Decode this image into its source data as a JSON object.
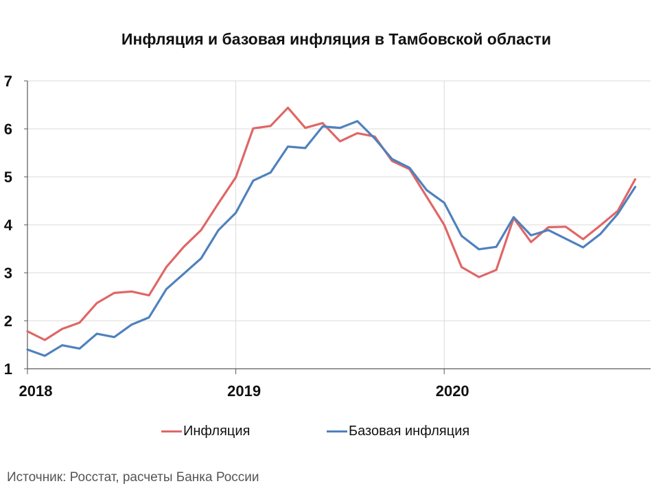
{
  "chart_data": {
    "type": "line",
    "title": "Инфляция и базовая инфляция в Тамбовской области",
    "xlabel": "",
    "ylabel": "",
    "ylim": [
      1,
      7
    ],
    "yticks": [
      "1",
      "2",
      "3",
      "4",
      "5",
      "6",
      "7"
    ],
    "xticks": [
      "2018",
      "2019",
      "2020"
    ],
    "x_start": "2018-01",
    "x_step": "month",
    "grid": true,
    "legend_position": "bottom",
    "series": [
      {
        "name": "Инфляция",
        "color": "#e06666",
        "values": [
          1.78,
          1.6,
          1.83,
          1.96,
          2.37,
          2.58,
          2.61,
          2.53,
          3.12,
          3.54,
          3.89,
          4.45,
          4.99,
          6.01,
          6.06,
          6.44,
          6.02,
          6.12,
          5.74,
          5.91,
          5.84,
          5.33,
          5.16,
          4.58,
          4.0,
          3.12,
          2.91,
          3.06,
          4.14,
          3.64,
          3.95,
          3.96,
          3.7,
          3.99,
          4.29,
          4.95
        ]
      },
      {
        "name": "Базовая инфляция",
        "color": "#4f81bd",
        "values": [
          1.4,
          1.27,
          1.49,
          1.42,
          1.73,
          1.66,
          1.92,
          2.07,
          2.66,
          2.98,
          3.3,
          3.89,
          4.25,
          4.92,
          5.09,
          5.63,
          5.6,
          6.05,
          6.02,
          6.16,
          5.8,
          5.37,
          5.19,
          4.72,
          4.46,
          3.77,
          3.49,
          3.54,
          4.16,
          3.78,
          3.89,
          3.71,
          3.53,
          3.81,
          4.23,
          4.79
        ]
      }
    ]
  },
  "source": "Источник: Росстат, расчеты Банка России"
}
